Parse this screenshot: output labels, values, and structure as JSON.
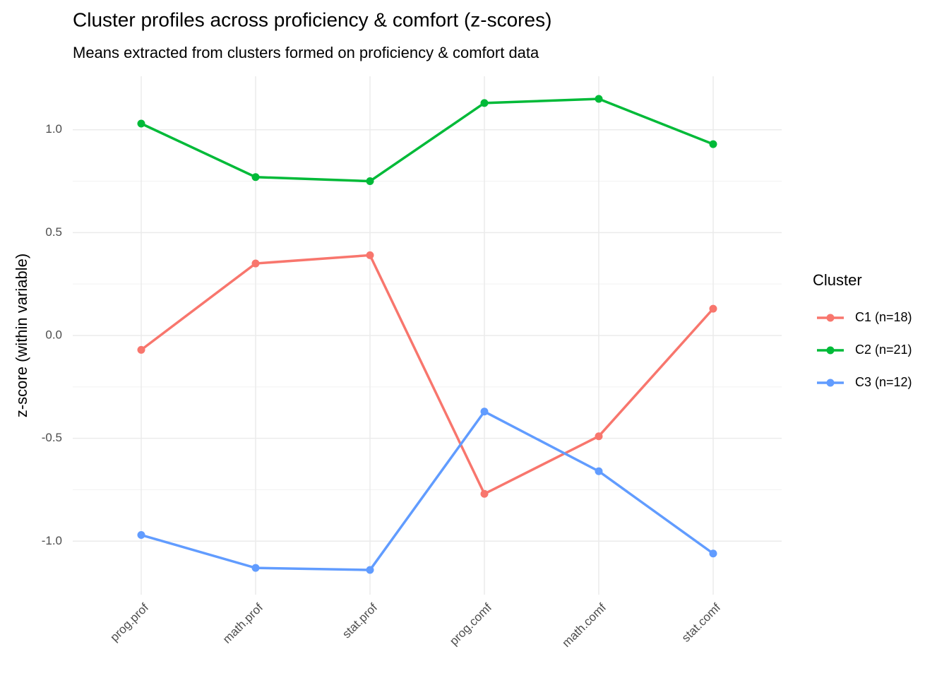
{
  "chart_data": {
    "type": "line",
    "title": "Cluster profiles across proficiency & comfort (z-scores)",
    "subtitle": "Means extracted from clusters formed on proficiency & comfort data",
    "y_label": "z-score (within variable)",
    "legend_title": "Cluster",
    "legend_position": "right",
    "grid": true,
    "categories": [
      "prog.prof",
      "math.prof",
      "stat.prof",
      "prog.comf",
      "math.comf",
      "stat.comf"
    ],
    "series": [
      {
        "name": "C1 (n=18)",
        "color": "#F8766D",
        "values": [
          -0.07,
          0.35,
          0.39,
          -0.77,
          -0.49,
          0.13
        ]
      },
      {
        "name": "C2 (n=21)",
        "color": "#00BA38",
        "values": [
          1.03,
          0.77,
          0.75,
          1.13,
          1.15,
          0.93
        ]
      },
      {
        "name": "C3 (n=12)",
        "color": "#619CFF",
        "values": [
          -0.97,
          -1.13,
          -1.14,
          -0.37,
          -0.66,
          -1.06
        ]
      }
    ],
    "ylim": [
      -1.26,
      1.26
    ],
    "yticks": [
      {
        "value": -1,
        "label": "-1.0"
      },
      -0.5,
      {
        "value": 0,
        "label": "0.0"
      },
      0.5,
      {
        "value": 1,
        "label": "1.0"
      }
    ]
  }
}
